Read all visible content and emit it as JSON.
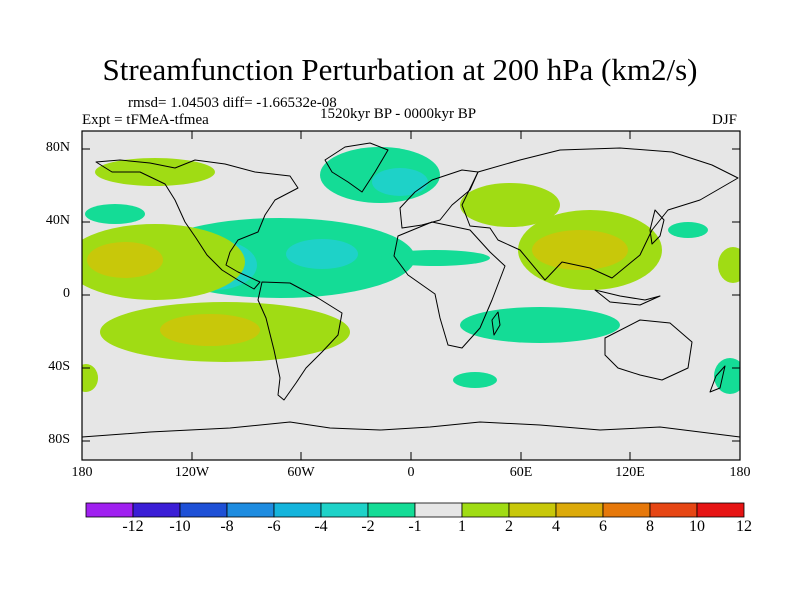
{
  "title": "Streamfunction Perturbation at 200 hPa (km2/s)",
  "stats": "rmsd= 1.04503 diff= -1.66532e-08",
  "expt": "Expt = tFMeA-tfmea",
  "period": "1520kyr BP - 0000kyr BP",
  "season": "DJF",
  "axes": {
    "lat_ticks": [
      "80N",
      "40N",
      "0",
      "40S",
      "80S"
    ],
    "lon_ticks": [
      "180",
      "120W",
      "60W",
      "0",
      "60E",
      "120E",
      "180"
    ]
  },
  "colorbar": {
    "labels": [
      "-12",
      "-10",
      "-8",
      "-6",
      "-4",
      "-2",
      "-1",
      "1",
      "2",
      "4",
      "6",
      "8",
      "10",
      "12"
    ],
    "colors": [
      "#a020f0",
      "#3b1ed6",
      "#1e50d6",
      "#1e8ce0",
      "#14b4dc",
      "#1ed2c8",
      "#14dc96",
      "#e6e6e6",
      "#a0dc14",
      "#c8c80a",
      "#dcaa0a",
      "#e6780a",
      "#e64614",
      "#e61414"
    ]
  },
  "palette": {
    "background": "#e6e6e6",
    "neg1": "#14dc96",
    "neg2": "#1ed2c8",
    "pos1": "#a0dc14",
    "pos2": "#c8c80a"
  }
}
